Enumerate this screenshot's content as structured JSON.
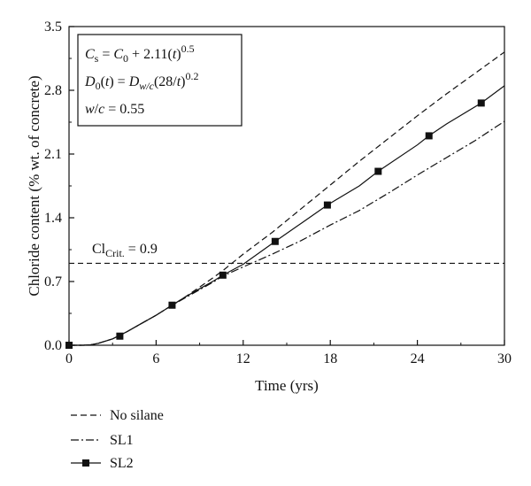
{
  "chart_data": {
    "type": "line",
    "xlabel": "Time (yrs)",
    "ylabel": "Chloride content (% wt. of concrete)",
    "xlim": [
      0,
      30
    ],
    "ylim": [
      0,
      3.5
    ],
    "x_ticks": [
      "0",
      "6",
      "12",
      "18",
      "24",
      "30"
    ],
    "y_ticks": [
      "0.0",
      "0.7",
      "1.4",
      "2.1",
      "2.8",
      "3.5"
    ],
    "grid": false,
    "legend_position": "below-left",
    "annotation_box": {
      "line1": {
        "a": "C",
        "a_sub": "s",
        "eq": " = ",
        "b": "C",
        "b_sub": "0",
        "rest": " + 2.11(",
        "t": "t",
        "close": ")",
        "sup": "0.5"
      },
      "line2": {
        "a": "D",
        "a_sub": "0",
        "open": "(",
        "t": "t",
        "eq": ") = ",
        "b": "D",
        "b_sub": "w/c",
        "rest": "(28/",
        "t2": "t",
        "close": ")",
        "sup": "0.2"
      },
      "line3": {
        "w": "w",
        "slash": "/",
        "c": "c",
        "rest": " = 0.55"
      }
    },
    "threshold": {
      "value": 0.9,
      "label_main": "Cl",
      "label_sub": "Crit.",
      "label_rest": " = 0.9"
    },
    "series": [
      {
        "name": "No silane",
        "style": "dashed",
        "x": [
          0,
          1,
          1.5,
          2,
          3,
          4,
          5,
          6,
          7,
          8,
          9,
          10,
          10.6,
          12,
          14,
          16,
          18,
          20,
          22,
          24,
          26,
          28,
          30
        ],
        "y": [
          0,
          0,
          0.005,
          0.02,
          0.07,
          0.15,
          0.24,
          0.33,
          0.43,
          0.53,
          0.64,
          0.75,
          0.82,
          1.0,
          1.24,
          1.5,
          1.76,
          2.02,
          2.27,
          2.52,
          2.76,
          2.99,
          3.22
        ]
      },
      {
        "name": "SL1",
        "style": "dashdot",
        "x": [
          0,
          1,
          1.5,
          2,
          3,
          4,
          5,
          6,
          7,
          8,
          9,
          10,
          10.6,
          12,
          14,
          16,
          18,
          20,
          22,
          24,
          26,
          28,
          30
        ],
        "y": [
          0,
          0,
          0.005,
          0.02,
          0.07,
          0.15,
          0.24,
          0.33,
          0.43,
          0.52,
          0.61,
          0.7,
          0.76,
          0.86,
          1.0,
          1.15,
          1.32,
          1.48,
          1.67,
          1.87,
          2.06,
          2.25,
          2.46
        ]
      },
      {
        "name": "SL2",
        "style": "solid",
        "marker": "square",
        "x": [
          0,
          1,
          1.5,
          2,
          3,
          4,
          5,
          6,
          7.1,
          8,
          9,
          10,
          10.6,
          12,
          14.2,
          16,
          17.8,
          20,
          21.3,
          24,
          24.8,
          26,
          28.4,
          30
        ],
        "y": [
          0,
          0,
          0.005,
          0.02,
          0.07,
          0.15,
          0.24,
          0.33,
          0.44,
          0.53,
          0.62,
          0.71,
          0.77,
          0.89,
          1.14,
          1.34,
          1.54,
          1.75,
          1.91,
          2.2,
          2.3,
          2.43,
          2.66,
          2.85
        ],
        "marker_x": [
          0,
          3.5,
          7.1,
          10.6,
          14.2,
          17.8,
          21.3,
          24.8,
          28.4
        ],
        "marker_y": [
          0,
          0.1,
          0.44,
          0.77,
          1.14,
          1.54,
          1.91,
          2.3,
          2.66
        ]
      }
    ]
  }
}
